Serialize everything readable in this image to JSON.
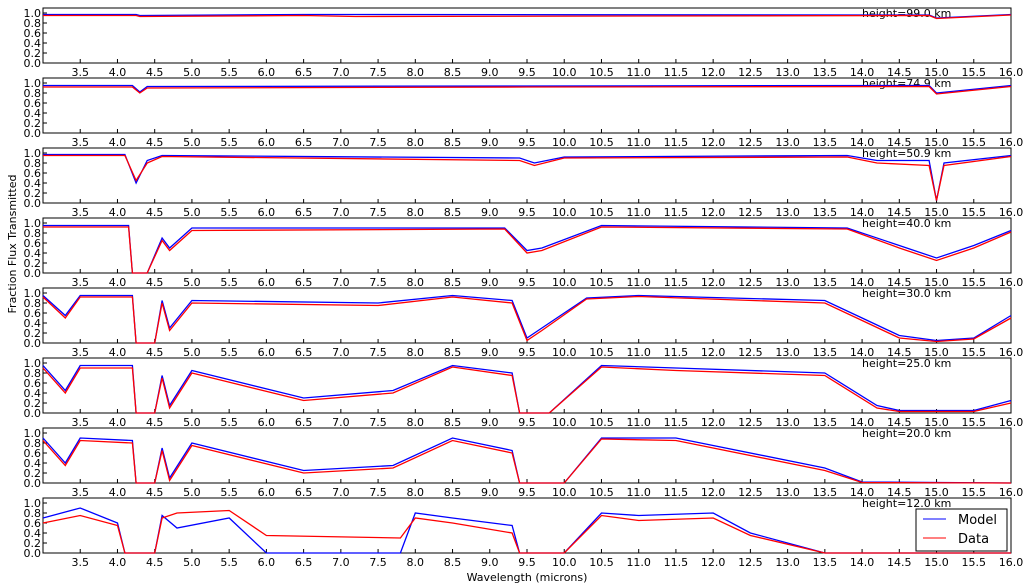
{
  "chart_data": {
    "type": "line",
    "ylabel": "Fraction Flux Transmitted",
    "xlabel": "Wavelength (microns)",
    "xlim": [
      3.0,
      16.0
    ],
    "ylim": [
      0.0,
      1.1
    ],
    "xticks": [
      "3.5",
      "4.0",
      "4.5",
      "5.0",
      "5.5",
      "6.0",
      "6.5",
      "7.0",
      "7.5",
      "8.0",
      "8.5",
      "9.0",
      "9.5",
      "10.0",
      "10.5",
      "11.0",
      "11.5",
      "12.0",
      "12.5",
      "13.0",
      "13.5",
      "14.0",
      "14.5",
      "15.0",
      "15.5",
      "16.0"
    ],
    "yticks": [
      "0.0",
      "0.2",
      "0.4",
      "0.6",
      "0.8",
      "1.0"
    ],
    "grid": false,
    "legend": {
      "placement": "lower-right",
      "entries": [
        {
          "label": "Model",
          "color": "#0000ff"
        },
        {
          "label": "Data",
          "color": "#ff0000"
        }
      ]
    },
    "panels": [
      {
        "title": "height=99.0 km",
        "series": [
          {
            "name": "Model",
            "x": [
              3.0,
              4.25,
              4.3,
              6.5,
              7.2,
              14.9,
              15.0,
              16.0
            ],
            "y": [
              0.97,
              0.97,
              0.95,
              0.97,
              0.97,
              0.96,
              0.9,
              0.97
            ]
          },
          {
            "name": "Data",
            "x": [
              3.0,
              4.25,
              4.3,
              6.5,
              7.2,
              14.9,
              15.0,
              16.0
            ],
            "y": [
              0.95,
              0.95,
              0.93,
              0.95,
              0.93,
              0.95,
              0.89,
              0.96
            ]
          }
        ]
      },
      {
        "title": "height=74.9 km",
        "series": [
          {
            "name": "Model",
            "x": [
              3.0,
              4.2,
              4.3,
              4.4,
              9.5,
              14.9,
              15.0,
              16.0
            ],
            "y": [
              0.95,
              0.95,
              0.82,
              0.93,
              0.94,
              0.95,
              0.8,
              0.95
            ]
          },
          {
            "name": "Data",
            "x": [
              3.0,
              4.2,
              4.3,
              4.4,
              9.5,
              14.9,
              15.0,
              16.0
            ],
            "y": [
              0.92,
              0.92,
              0.8,
              0.9,
              0.92,
              0.93,
              0.78,
              0.93
            ]
          }
        ]
      },
      {
        "title": "height=50.9 km",
        "series": [
          {
            "name": "Model",
            "x": [
              3.0,
              4.1,
              4.25,
              4.4,
              4.6,
              9.4,
              9.6,
              10.0,
              13.8,
              14.2,
              14.9,
              15.0,
              15.1,
              16.0
            ],
            "y": [
              0.97,
              0.97,
              0.4,
              0.85,
              0.95,
              0.9,
              0.8,
              0.92,
              0.95,
              0.85,
              0.85,
              0.05,
              0.8,
              0.95
            ]
          },
          {
            "name": "Data",
            "x": [
              3.0,
              4.1,
              4.25,
              4.4,
              4.6,
              9.4,
              9.6,
              10.0,
              13.8,
              14.2,
              14.9,
              15.0,
              15.1,
              16.0
            ],
            "y": [
              0.95,
              0.95,
              0.45,
              0.8,
              0.93,
              0.85,
              0.75,
              0.9,
              0.92,
              0.8,
              0.75,
              0.05,
              0.75,
              0.93
            ]
          }
        ]
      },
      {
        "title": "height=40.0 km",
        "series": [
          {
            "name": "Model",
            "x": [
              3.0,
              4.15,
              4.2,
              4.4,
              4.6,
              4.7,
              5.0,
              9.2,
              9.5,
              9.7,
              10.5,
              13.8,
              14.5,
              15.0,
              15.5,
              16.0
            ],
            "y": [
              0.95,
              0.95,
              0.0,
              0.0,
              0.7,
              0.5,
              0.9,
              0.9,
              0.45,
              0.5,
              0.95,
              0.9,
              0.55,
              0.3,
              0.55,
              0.85
            ]
          },
          {
            "name": "Data",
            "x": [
              3.0,
              4.15,
              4.2,
              4.4,
              4.6,
              4.7,
              5.0,
              9.2,
              9.5,
              9.7,
              10.5,
              13.8,
              14.5,
              15.0,
              15.5,
              16.0
            ],
            "y": [
              0.92,
              0.92,
              0.0,
              0.0,
              0.65,
              0.45,
              0.85,
              0.88,
              0.4,
              0.45,
              0.92,
              0.88,
              0.5,
              0.25,
              0.5,
              0.82
            ]
          }
        ]
      },
      {
        "title": "height=30.0 km",
        "series": [
          {
            "name": "Model",
            "x": [
              3.0,
              3.3,
              3.5,
              4.2,
              4.25,
              4.5,
              4.6,
              4.7,
              5.0,
              7.5,
              8.5,
              9.3,
              9.5,
              9.7,
              10.3,
              11.0,
              13.5,
              14.0,
              14.5,
              15.0,
              15.5,
              16.0
            ],
            "y": [
              0.95,
              0.55,
              0.95,
              0.95,
              0.0,
              0.0,
              0.85,
              0.3,
              0.85,
              0.8,
              0.95,
              0.85,
              0.1,
              0.3,
              0.9,
              0.95,
              0.85,
              0.5,
              0.15,
              0.05,
              0.1,
              0.55
            ]
          },
          {
            "name": "Data",
            "x": [
              3.0,
              3.3,
              3.5,
              4.2,
              4.25,
              4.5,
              4.6,
              4.7,
              5.0,
              7.5,
              8.5,
              9.3,
              9.5,
              9.7,
              10.3,
              11.0,
              13.5,
              14.0,
              14.5,
              15.0,
              15.5,
              16.0
            ],
            "y": [
              0.92,
              0.5,
              0.92,
              0.92,
              0.0,
              0.0,
              0.8,
              0.25,
              0.8,
              0.75,
              0.92,
              0.8,
              0.05,
              0.25,
              0.88,
              0.93,
              0.8,
              0.45,
              0.1,
              0.03,
              0.08,
              0.5
            ]
          }
        ]
      },
      {
        "title": "height=25.0 km",
        "series": [
          {
            "name": "Model",
            "x": [
              3.0,
              3.3,
              3.5,
              4.2,
              4.25,
              4.5,
              4.6,
              4.7,
              5.0,
              6.5,
              7.7,
              8.5,
              9.3,
              9.4,
              9.8,
              10.5,
              11.5,
              13.5,
              14.2,
              14.5,
              15.5,
              16.0
            ],
            "y": [
              0.95,
              0.45,
              0.95,
              0.95,
              0.0,
              0.0,
              0.75,
              0.15,
              0.85,
              0.3,
              0.45,
              0.95,
              0.8,
              0.0,
              0.0,
              0.95,
              0.9,
              0.8,
              0.15,
              0.05,
              0.05,
              0.25
            ]
          },
          {
            "name": "Data",
            "x": [
              3.0,
              3.3,
              3.5,
              4.2,
              4.25,
              4.5,
              4.6,
              4.7,
              5.0,
              6.5,
              7.7,
              8.5,
              9.3,
              9.4,
              9.8,
              10.5,
              11.5,
              13.5,
              14.2,
              14.5,
              15.5,
              16.0
            ],
            "y": [
              0.9,
              0.4,
              0.9,
              0.9,
              0.0,
              0.0,
              0.7,
              0.1,
              0.8,
              0.25,
              0.4,
              0.92,
              0.75,
              0.0,
              0.0,
              0.92,
              0.85,
              0.75,
              0.1,
              0.03,
              0.03,
              0.2
            ]
          }
        ]
      },
      {
        "title": "height=20.0 km",
        "series": [
          {
            "name": "Model",
            "x": [
              3.0,
              3.3,
              3.5,
              4.2,
              4.25,
              4.5,
              4.6,
              4.7,
              5.0,
              6.5,
              7.7,
              8.5,
              9.3,
              9.4,
              10.0,
              10.5,
              11.5,
              13.5,
              14.0,
              16.0
            ],
            "y": [
              0.9,
              0.4,
              0.9,
              0.85,
              0.0,
              0.0,
              0.7,
              0.1,
              0.8,
              0.25,
              0.35,
              0.9,
              0.65,
              0.0,
              0.0,
              0.9,
              0.9,
              0.3,
              0.02,
              0.0
            ]
          },
          {
            "name": "Data",
            "x": [
              3.0,
              3.3,
              3.5,
              4.2,
              4.25,
              4.5,
              4.6,
              4.7,
              5.0,
              6.5,
              7.7,
              8.5,
              9.3,
              9.4,
              10.0,
              10.5,
              11.5,
              13.5,
              14.0,
              16.0
            ],
            "y": [
              0.85,
              0.35,
              0.85,
              0.8,
              0.0,
              0.0,
              0.65,
              0.05,
              0.75,
              0.2,
              0.3,
              0.85,
              0.6,
              0.0,
              0.0,
              0.88,
              0.85,
              0.25,
              0.01,
              0.0
            ]
          }
        ]
      },
      {
        "title": "height=12.0 km",
        "series": [
          {
            "name": "Model",
            "x": [
              3.0,
              3.5,
              4.0,
              4.1,
              4.5,
              4.6,
              4.8,
              5.5,
              6.0,
              7.8,
              8.0,
              8.5,
              9.3,
              9.4,
              10.0,
              10.5,
              11.0,
              12.0,
              12.5,
              13.5,
              14.0,
              16.0
            ],
            "y": [
              0.7,
              0.9,
              0.6,
              0.0,
              0.0,
              0.75,
              0.5,
              0.7,
              0.0,
              0.0,
              0.8,
              0.7,
              0.55,
              0.0,
              0.0,
              0.8,
              0.75,
              0.8,
              0.4,
              0.0,
              0.0,
              0.0
            ]
          },
          {
            "name": "Data",
            "x": [
              3.0,
              3.5,
              4.0,
              4.1,
              4.5,
              4.6,
              4.8,
              5.5,
              6.0,
              7.8,
              8.0,
              8.5,
              9.3,
              9.4,
              10.0,
              10.5,
              11.0,
              12.0,
              12.5,
              13.5,
              14.0,
              16.0
            ],
            "y": [
              0.6,
              0.75,
              0.55,
              0.0,
              0.0,
              0.7,
              0.8,
              0.85,
              0.35,
              0.3,
              0.7,
              0.6,
              0.4,
              0.0,
              0.0,
              0.75,
              0.65,
              0.7,
              0.35,
              0.0,
              0.0,
              0.0
            ]
          }
        ]
      }
    ]
  }
}
